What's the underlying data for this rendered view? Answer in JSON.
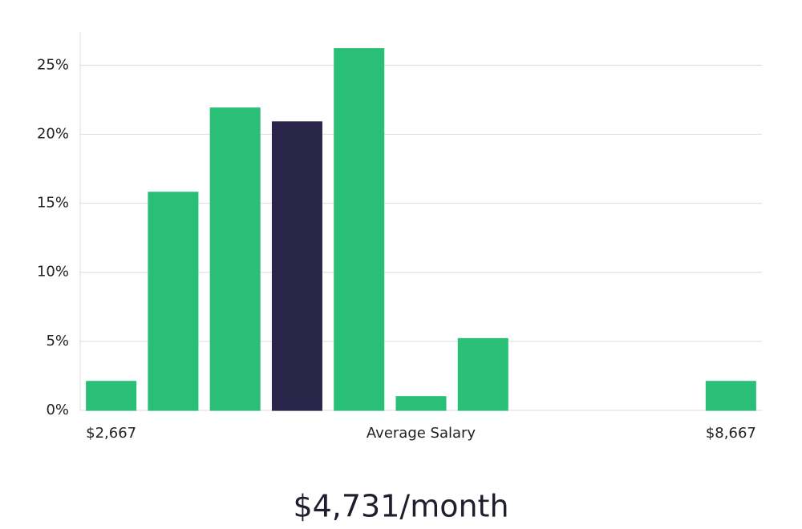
{
  "chart_data": {
    "type": "bar",
    "categories": [
      "$2,667",
      null,
      null,
      null,
      null,
      null,
      null,
      null,
      null,
      null,
      "$8,667"
    ],
    "values": [
      2.1,
      15.8,
      21.9,
      20.9,
      26.2,
      1.0,
      5.2,
      0,
      0,
      0,
      2.1
    ],
    "colors": [
      "#2abf76",
      "#2abf76",
      "#2abf76",
      "#29264a",
      "#2abf76",
      "#2abf76",
      "#2abf76",
      "#2abf76",
      "#2abf76",
      "#2abf76",
      "#2abf76"
    ],
    "x_label": "Average Salary",
    "ylim": [
      0,
      27.4
    ],
    "yticks": [
      {
        "value": 0,
        "label": "0%"
      },
      {
        "value": 5,
        "label": "5%"
      },
      {
        "value": 10,
        "label": "10%"
      },
      {
        "value": 15,
        "label": "15%"
      },
      {
        "value": 20,
        "label": "20%"
      },
      {
        "value": 25,
        "label": "25%"
      }
    ],
    "grid": true,
    "summary": "$4,731/month"
  }
}
